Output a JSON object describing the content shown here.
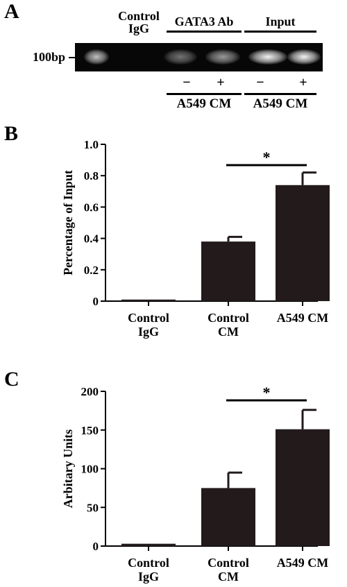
{
  "panel_a": {
    "letter": "A",
    "marker_label": "100bp",
    "lane_headers": {
      "control_igg": "Control IgG",
      "gata3": "GATA3 Ab",
      "input": "Input"
    },
    "treatment_signs": [
      "−",
      "+",
      "−",
      "+"
    ],
    "treatment_groups": [
      "A549 CM",
      "A549 CM"
    ],
    "bands": [
      {
        "lane": "marker",
        "intensity": 0.75
      },
      {
        "lane": "control_igg",
        "intensity": 0.0
      },
      {
        "lane": "gata3_minus",
        "intensity": 0.45
      },
      {
        "lane": "gata3_plus",
        "intensity": 0.6
      },
      {
        "lane": "input_minus",
        "intensity": 0.95
      },
      {
        "lane": "input_plus",
        "intensity": 0.95
      }
    ]
  },
  "chart_data": [
    {
      "type": "bar",
      "panel": "B",
      "ylabel": "Percentage of Input",
      "categories": [
        "Control IgG",
        "Control CM",
        "A549 CM"
      ],
      "values": [
        0.01,
        0.38,
        0.74
      ],
      "errors": [
        0.0,
        0.03,
        0.08
      ],
      "ylim": [
        0,
        1.0
      ],
      "yticks": [
        "0",
        "0.2",
        "0.4",
        "0.6",
        "0.8",
        "1.0"
      ],
      "significance": {
        "from": 1,
        "to": 2,
        "label": "*"
      },
      "bar_color": "#231a1c"
    },
    {
      "type": "bar",
      "panel": "C",
      "ylabel": "Arbitary Units",
      "categories": [
        "Control IgG",
        "Control CM",
        "A549 CM"
      ],
      "values": [
        3,
        75,
        151
      ],
      "errors": [
        0,
        20,
        25
      ],
      "ylim": [
        0,
        200
      ],
      "yticks": [
        "0",
        "50",
        "100",
        "150",
        "200"
      ],
      "significance": {
        "from": 1,
        "to": 2,
        "label": "*"
      },
      "bar_color": "#231a1c"
    }
  ]
}
